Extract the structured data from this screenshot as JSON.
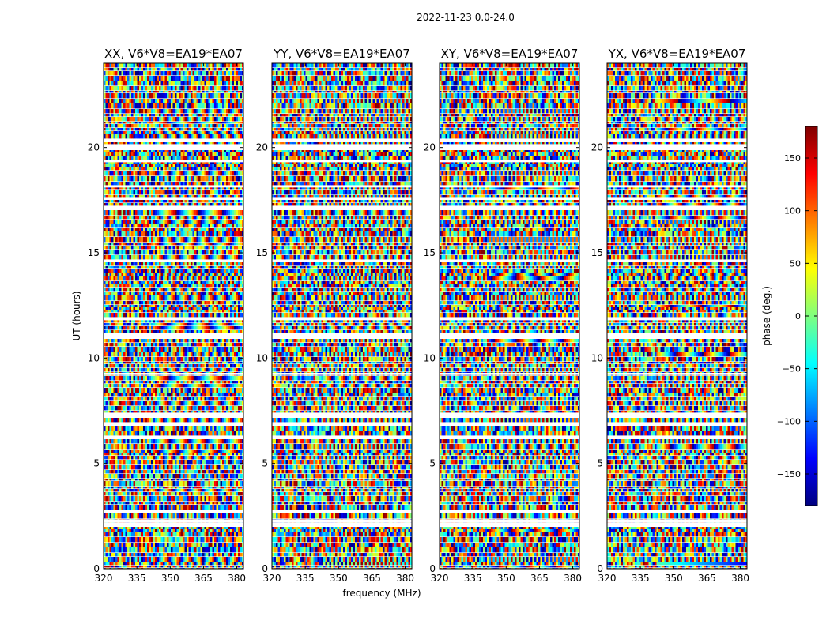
{
  "figure": {
    "suptitle": "2022-11-23 0.0-24.0",
    "xlabel": "frequency (MHz)",
    "ylabel": "UT (hours)"
  },
  "colorbar": {
    "label": "phase (deg.)",
    "range": [
      -180,
      180
    ],
    "ticks": [
      150,
      100,
      50,
      0,
      -50,
      -100,
      -150
    ],
    "tick_labels": [
      "150",
      "100",
      "50",
      "0",
      "−50",
      "−100",
      "−150"
    ],
    "colormap": "jet",
    "colors": [
      "#00007f",
      "#0000ff",
      "#007fff",
      "#00ffff",
      "#7fff7f",
      "#ffff00",
      "#ff7f00",
      "#ff0000",
      "#7f0000"
    ]
  },
  "chart_data": {
    "type": "heatmap",
    "value_quantity": "phase (deg.)",
    "x_range": [
      320,
      383
    ],
    "y_range": [
      0,
      24
    ],
    "x_ticks": [
      320,
      335,
      350,
      365,
      380
    ],
    "y_ticks": [
      0,
      5,
      10,
      15,
      20
    ],
    "flagged_color": "#ffffff",
    "flagged_ut_ranges": [
      [
        2.05,
        2.15
      ],
      [
        2.2,
        2.35
      ],
      [
        6.8,
        6.9
      ],
      [
        9.2,
        9.3
      ],
      [
        11.8,
        11.9
      ],
      [
        18.1,
        18.2
      ],
      [
        19.3,
        19.4
      ],
      [
        20.25,
        20.4
      ]
    ],
    "panels": [
      {
        "title": "XX, V6*V8=EA19*EA07"
      },
      {
        "title": "YY, V6*V8=EA19*EA07"
      },
      {
        "title": "XY, V6*V8=EA19*EA07"
      },
      {
        "title": "YX, V6*V8=EA19*EA07"
      }
    ]
  }
}
